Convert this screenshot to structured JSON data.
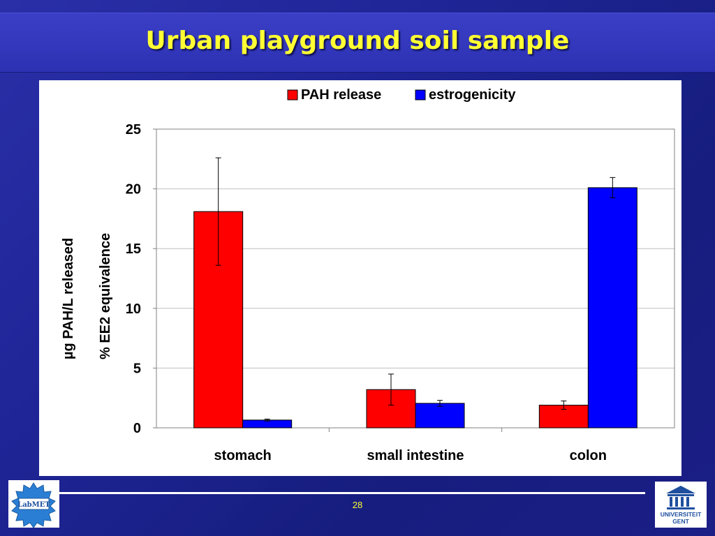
{
  "slide": {
    "title": "Urban playground soil sample",
    "page_number": "28"
  },
  "logos": {
    "left_logo_text": "LabMET",
    "right_logo_text_1": "UNIVERSITEIT",
    "right_logo_text_2": "GENT"
  },
  "colors": {
    "pah_release": "#ff0000",
    "estrogenicity": "#0000ff",
    "title": "#ffff33"
  },
  "chart_data": {
    "type": "bar",
    "title": "",
    "categories": [
      "stomach",
      "small intestine",
      "colon"
    ],
    "series": [
      {
        "name": "PAH release",
        "values": [
          18.1,
          3.2,
          1.9
        ],
        "errors": [
          4.5,
          1.3,
          0.35
        ]
      },
      {
        "name": "estrogenicity",
        "values": [
          0.65,
          2.05,
          20.1
        ],
        "errors": [
          0.08,
          0.25,
          0.85
        ]
      }
    ],
    "ylim": [
      0,
      25
    ],
    "yticks": [
      0,
      5,
      10,
      15,
      20,
      25
    ],
    "ylabel_primary": "µg PAH/L released",
    "ylabel_secondary": "% EE2 equivalence",
    "xlabel": "",
    "grid": true,
    "legend_position": "top"
  }
}
